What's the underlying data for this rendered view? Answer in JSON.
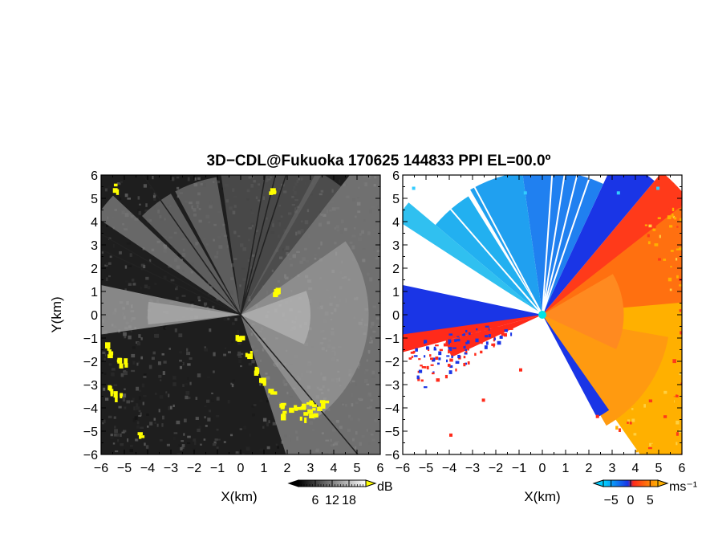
{
  "chart_data": {
    "type": "heatmap",
    "title": "3D−CDL@Fukuoka 170625 144833 PPI EL=00.0º",
    "panels": [
      {
        "id": "intensity",
        "xlabel": "X(km)",
        "ylabel": "Y(km)",
        "xlim": [
          -6,
          6
        ],
        "ylim": [
          -6,
          6
        ],
        "xticks": [
          "−6",
          "−5",
          "−4",
          "−3",
          "−2",
          "−1",
          "0",
          "1",
          "2",
          "3",
          "4",
          "5",
          "6"
        ],
        "yticks": [
          "−6",
          "−5",
          "−4",
          "−3",
          "−2",
          "−1",
          "0",
          "1",
          "2",
          "3",
          "4",
          "5",
          "6"
        ],
        "colorbar": {
          "unit": "dB",
          "tick_labels": [
            "6",
            "12",
            "18"
          ],
          "tick_values": [
            6,
            12,
            18
          ],
          "range": [
            0,
            24
          ],
          "colors": [
            "#000000",
            "#ffffff"
          ],
          "overflow_color": "#ffff00"
        }
      },
      {
        "id": "velocity",
        "xlabel": "X(km)",
        "xlim": [
          -6,
          6
        ],
        "ylim": [
          -6,
          6
        ],
        "xticks": [
          "−6",
          "−5",
          "−4",
          "−3",
          "−2",
          "−1",
          "0",
          "1",
          "2",
          "3",
          "4",
          "5",
          "6"
        ],
        "yticks": [
          "−6",
          "−5",
          "−4",
          "−3",
          "−2",
          "−1",
          "0",
          "1",
          "2",
          "3",
          "4",
          "5",
          "6"
        ],
        "colorbar": {
          "unit": "ms⁻¹",
          "tick_labels": [
            "−5",
            "0",
            "5"
          ],
          "tick_values": [
            -5,
            0,
            5
          ],
          "range": [
            -7,
            7
          ],
          "colors": [
            "#00ccff",
            "#1a35e6",
            "#ff2a1a",
            "#ffb000"
          ]
        }
      }
    ]
  }
}
